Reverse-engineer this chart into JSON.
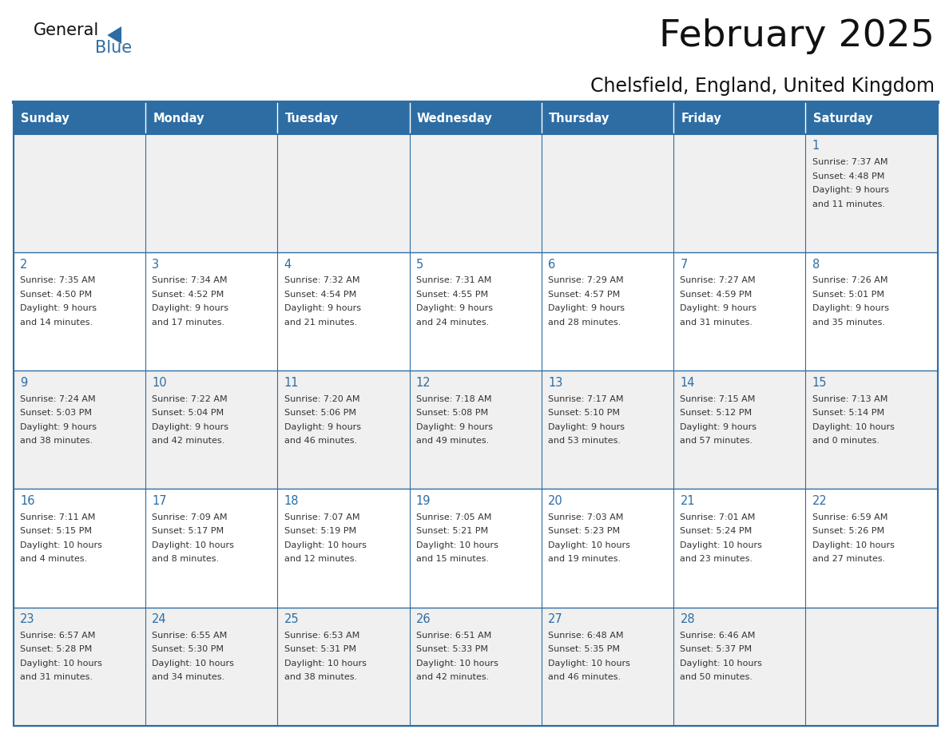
{
  "title": "February 2025",
  "subtitle": "Chelsfield, England, United Kingdom",
  "header_bg": "#2E6DA4",
  "header_text_color": "#FFFFFF",
  "cell_bg_odd": "#F0F0F0",
  "cell_bg_even": "#FFFFFF",
  "day_headers": [
    "Sunday",
    "Monday",
    "Tuesday",
    "Wednesday",
    "Thursday",
    "Friday",
    "Saturday"
  ],
  "days": [
    {
      "day": 1,
      "col": 6,
      "row": 0,
      "sunrise": "7:37 AM",
      "sunset": "4:48 PM",
      "daylight_a": "9 hours",
      "daylight_b": "and 11 minutes."
    },
    {
      "day": 2,
      "col": 0,
      "row": 1,
      "sunrise": "7:35 AM",
      "sunset": "4:50 PM",
      "daylight_a": "9 hours",
      "daylight_b": "and 14 minutes."
    },
    {
      "day": 3,
      "col": 1,
      "row": 1,
      "sunrise": "7:34 AM",
      "sunset": "4:52 PM",
      "daylight_a": "9 hours",
      "daylight_b": "and 17 minutes."
    },
    {
      "day": 4,
      "col": 2,
      "row": 1,
      "sunrise": "7:32 AM",
      "sunset": "4:54 PM",
      "daylight_a": "9 hours",
      "daylight_b": "and 21 minutes."
    },
    {
      "day": 5,
      "col": 3,
      "row": 1,
      "sunrise": "7:31 AM",
      "sunset": "4:55 PM",
      "daylight_a": "9 hours",
      "daylight_b": "and 24 minutes."
    },
    {
      "day": 6,
      "col": 4,
      "row": 1,
      "sunrise": "7:29 AM",
      "sunset": "4:57 PM",
      "daylight_a": "9 hours",
      "daylight_b": "and 28 minutes."
    },
    {
      "day": 7,
      "col": 5,
      "row": 1,
      "sunrise": "7:27 AM",
      "sunset": "4:59 PM",
      "daylight_a": "9 hours",
      "daylight_b": "and 31 minutes."
    },
    {
      "day": 8,
      "col": 6,
      "row": 1,
      "sunrise": "7:26 AM",
      "sunset": "5:01 PM",
      "daylight_a": "9 hours",
      "daylight_b": "and 35 minutes."
    },
    {
      "day": 9,
      "col": 0,
      "row": 2,
      "sunrise": "7:24 AM",
      "sunset": "5:03 PM",
      "daylight_a": "9 hours",
      "daylight_b": "and 38 minutes."
    },
    {
      "day": 10,
      "col": 1,
      "row": 2,
      "sunrise": "7:22 AM",
      "sunset": "5:04 PM",
      "daylight_a": "9 hours",
      "daylight_b": "and 42 minutes."
    },
    {
      "day": 11,
      "col": 2,
      "row": 2,
      "sunrise": "7:20 AM",
      "sunset": "5:06 PM",
      "daylight_a": "9 hours",
      "daylight_b": "and 46 minutes."
    },
    {
      "day": 12,
      "col": 3,
      "row": 2,
      "sunrise": "7:18 AM",
      "sunset": "5:08 PM",
      "daylight_a": "9 hours",
      "daylight_b": "and 49 minutes."
    },
    {
      "day": 13,
      "col": 4,
      "row": 2,
      "sunrise": "7:17 AM",
      "sunset": "5:10 PM",
      "daylight_a": "9 hours",
      "daylight_b": "and 53 minutes."
    },
    {
      "day": 14,
      "col": 5,
      "row": 2,
      "sunrise": "7:15 AM",
      "sunset": "5:12 PM",
      "daylight_a": "9 hours",
      "daylight_b": "and 57 minutes."
    },
    {
      "day": 15,
      "col": 6,
      "row": 2,
      "sunrise": "7:13 AM",
      "sunset": "5:14 PM",
      "daylight_a": "10 hours",
      "daylight_b": "and 0 minutes."
    },
    {
      "day": 16,
      "col": 0,
      "row": 3,
      "sunrise": "7:11 AM",
      "sunset": "5:15 PM",
      "daylight_a": "10 hours",
      "daylight_b": "and 4 minutes."
    },
    {
      "day": 17,
      "col": 1,
      "row": 3,
      "sunrise": "7:09 AM",
      "sunset": "5:17 PM",
      "daylight_a": "10 hours",
      "daylight_b": "and 8 minutes."
    },
    {
      "day": 18,
      "col": 2,
      "row": 3,
      "sunrise": "7:07 AM",
      "sunset": "5:19 PM",
      "daylight_a": "10 hours",
      "daylight_b": "and 12 minutes."
    },
    {
      "day": 19,
      "col": 3,
      "row": 3,
      "sunrise": "7:05 AM",
      "sunset": "5:21 PM",
      "daylight_a": "10 hours",
      "daylight_b": "and 15 minutes."
    },
    {
      "day": 20,
      "col": 4,
      "row": 3,
      "sunrise": "7:03 AM",
      "sunset": "5:23 PM",
      "daylight_a": "10 hours",
      "daylight_b": "and 19 minutes."
    },
    {
      "day": 21,
      "col": 5,
      "row": 3,
      "sunrise": "7:01 AM",
      "sunset": "5:24 PM",
      "daylight_a": "10 hours",
      "daylight_b": "and 23 minutes."
    },
    {
      "day": 22,
      "col": 6,
      "row": 3,
      "sunrise": "6:59 AM",
      "sunset": "5:26 PM",
      "daylight_a": "10 hours",
      "daylight_b": "and 27 minutes."
    },
    {
      "day": 23,
      "col": 0,
      "row": 4,
      "sunrise": "6:57 AM",
      "sunset": "5:28 PM",
      "daylight_a": "10 hours",
      "daylight_b": "and 31 minutes."
    },
    {
      "day": 24,
      "col": 1,
      "row": 4,
      "sunrise": "6:55 AM",
      "sunset": "5:30 PM",
      "daylight_a": "10 hours",
      "daylight_b": "and 34 minutes."
    },
    {
      "day": 25,
      "col": 2,
      "row": 4,
      "sunrise": "6:53 AM",
      "sunset": "5:31 PM",
      "daylight_a": "10 hours",
      "daylight_b": "and 38 minutes."
    },
    {
      "day": 26,
      "col": 3,
      "row": 4,
      "sunrise": "6:51 AM",
      "sunset": "5:33 PM",
      "daylight_a": "10 hours",
      "daylight_b": "and 42 minutes."
    },
    {
      "day": 27,
      "col": 4,
      "row": 4,
      "sunrise": "6:48 AM",
      "sunset": "5:35 PM",
      "daylight_a": "10 hours",
      "daylight_b": "and 46 minutes."
    },
    {
      "day": 28,
      "col": 5,
      "row": 4,
      "sunrise": "6:46 AM",
      "sunset": "5:37 PM",
      "daylight_a": "10 hours",
      "daylight_b": "and 50 minutes."
    }
  ],
  "num_rows": 5,
  "num_cols": 7,
  "border_color": "#2E6DA4",
  "day_num_color": "#2E6DA4",
  "cell_text_color": "#333333",
  "logo_text1": "General",
  "logo_text2": "Blue"
}
